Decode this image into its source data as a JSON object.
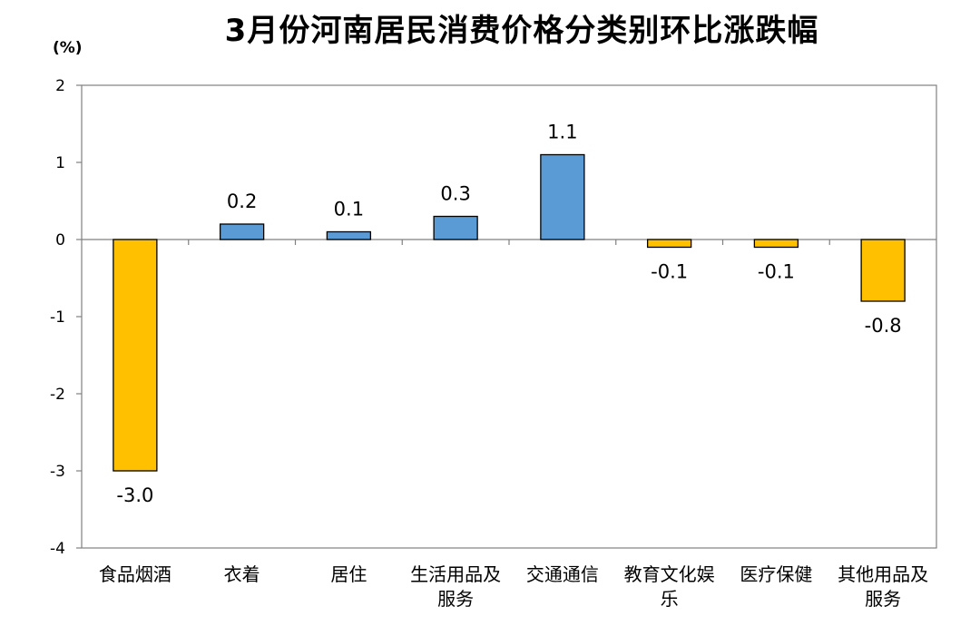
{
  "chart_data": {
    "type": "bar",
    "title": "3月份河南居民消费价格分类别环比涨跌幅",
    "unit_label": "(%)",
    "categories": [
      [
        "食品烟酒"
      ],
      [
        "衣着"
      ],
      [
        "居住"
      ],
      [
        "生活用品及",
        "服务"
      ],
      [
        "交通通信"
      ],
      [
        "教育文化娱",
        "乐"
      ],
      [
        "医疗保健"
      ],
      [
        "其他用品及",
        "服务"
      ]
    ],
    "values": [
      -3.0,
      0.2,
      0.1,
      0.3,
      1.1,
      -0.1,
      -0.1,
      -0.8
    ],
    "value_labels": [
      "-3.0",
      "0.2",
      "0.1",
      "0.3",
      "1.1",
      "-0.1",
      "-0.1",
      "-0.8"
    ],
    "ylim": [
      -4,
      2
    ],
    "yticks": [
      2,
      1,
      0,
      -1,
      -2,
      -3,
      -4
    ],
    "colors": {
      "positive": "#5B9BD5",
      "negative": "#FFC000",
      "axis": "#808080"
    },
    "grid": false,
    "legend": "none"
  }
}
